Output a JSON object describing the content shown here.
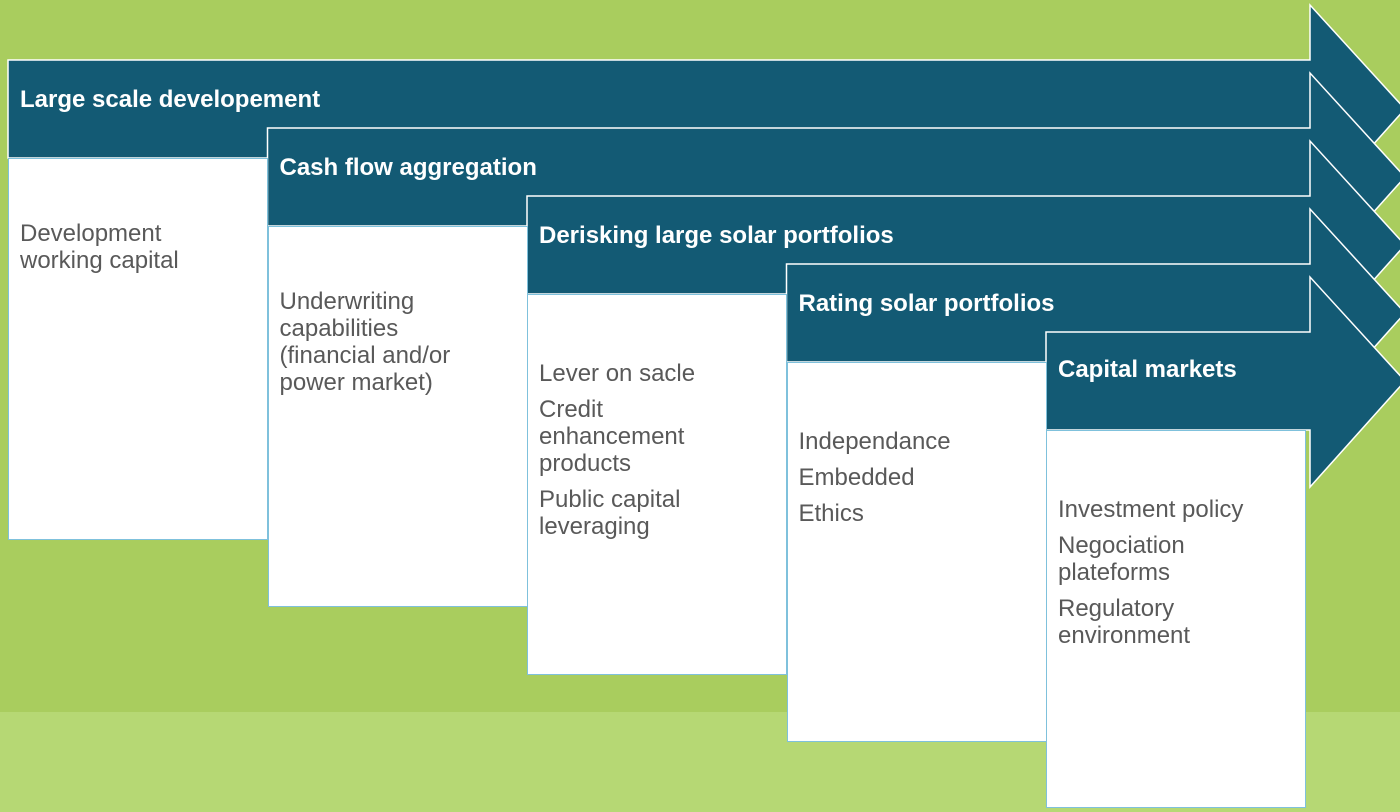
{
  "stages": [
    {
      "title": "Large scale developement",
      "items": [
        "Development working capital"
      ]
    },
    {
      "title": "Cash flow aggregation",
      "items": [
        "Underwriting capabilities (financial and/or power market)"
      ]
    },
    {
      "title": "Derisking large solar portfolios",
      "items": [
        "Lever on sacle",
        "Credit enhancement products",
        "Public capital leveraging"
      ]
    },
    {
      "title": "Rating solar portfolios",
      "items": [
        "Independance",
        "Embedded",
        "Ethics"
      ]
    },
    {
      "title": "Capital markets",
      "items": [
        "Investment policy",
        "Negociation plateforms",
        "Regulatory environment"
      ]
    }
  ]
}
